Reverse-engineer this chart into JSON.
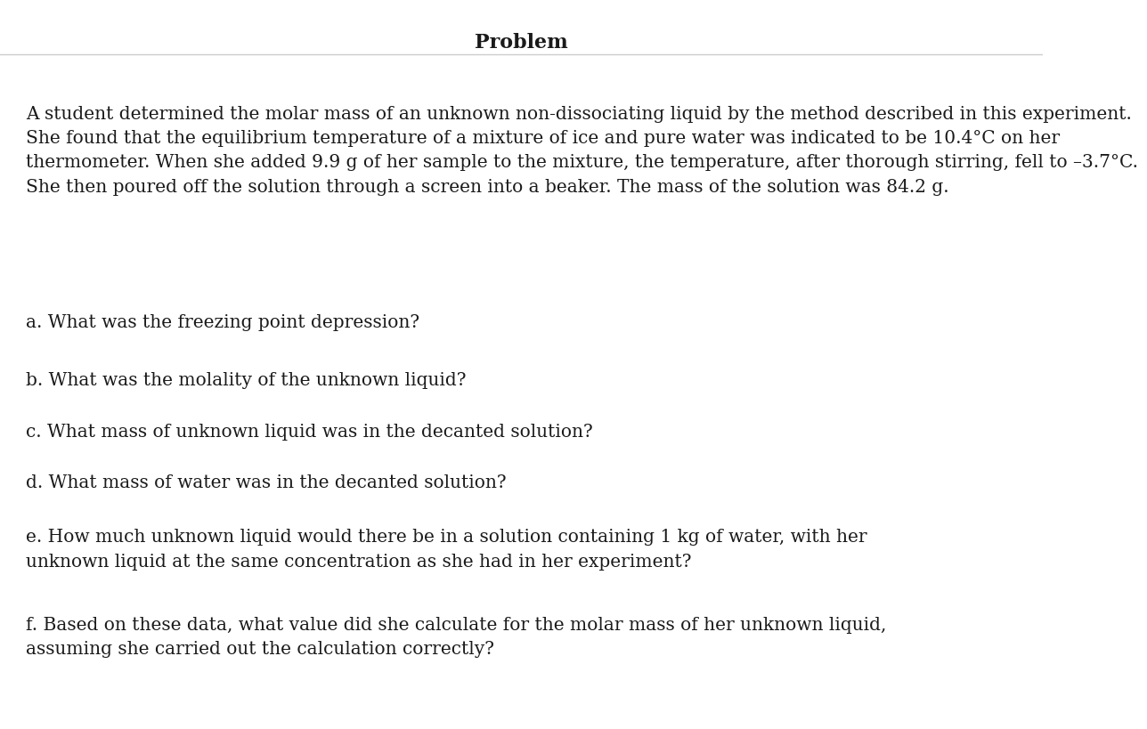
{
  "title": "Problem",
  "title_fontsize": 16,
  "title_fontweight": "bold",
  "title_font": "DejaVu Serif",
  "body_font": "DejaVu Serif",
  "body_fontsize": 14.5,
  "background_color": "#ffffff",
  "text_color": "#1a1a1a",
  "header_line_color": "#cccccc",
  "paragraph": "A student determined the molar mass of an unknown non-dissociating liquid by the method described in this experiment. She found that the equilibrium temperature of a mixture of ice and pure water was indicated to be 10.4°C on her thermometer. When she added 9.9 g of her sample to the mixture, the temperature, after thorough stirring, fell to –3.7°C. She then poured off the solution through a screen into a beaker. The mass of the solution was 84.2 g.",
  "questions": [
    "a. What was the freezing point depression?",
    "b. What was the molality of the unknown liquid?",
    "c. What mass of unknown liquid was in the decanted solution?",
    "d. What mass of water was in the decanted solution?",
    "e. How much unknown liquid would there be in a solution containing 1 kg of water, with her\nunknown liquid at the same concentration as she had in her experiment?",
    "f. Based on these data, what value did she calculate for the molar mass of her unknown liquid,\nassuming she carried out the calculation correctly?"
  ]
}
